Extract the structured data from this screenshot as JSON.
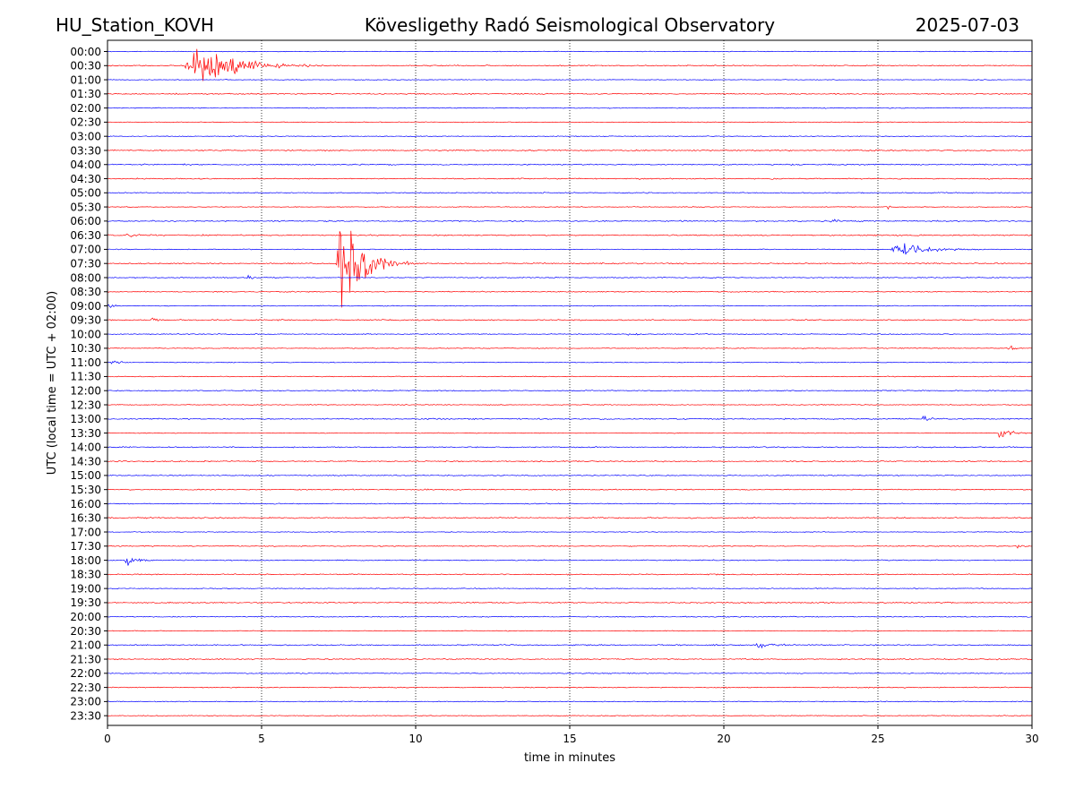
{
  "header": {
    "station": "HU_Station_KOVH",
    "title": "Kövesligethy Radó Seismological Observatory",
    "date": "2025-07-03"
  },
  "chart_data": {
    "type": "line",
    "title": "Kövesligethy Radó Seismological Observatory",
    "xlabel": "time in minutes",
    "ylabel": "UTC (local time = UTC + 02:00)",
    "xlim": [
      0,
      30
    ],
    "x_ticks": [
      0,
      5,
      10,
      15,
      20,
      25,
      30
    ],
    "x_gridlines": [
      5,
      10,
      15,
      20,
      25
    ],
    "trace_colors": [
      "#0000ff",
      "#ff0000"
    ],
    "rows": [
      "00:00",
      "00:30",
      "01:00",
      "01:30",
      "02:00",
      "02:30",
      "03:00",
      "03:30",
      "04:00",
      "04:30",
      "05:00",
      "05:30",
      "06:00",
      "06:30",
      "07:00",
      "07:30",
      "08:00",
      "08:30",
      "09:00",
      "09:30",
      "10:00",
      "10:30",
      "11:00",
      "11:30",
      "12:00",
      "12:30",
      "13:00",
      "13:30",
      "14:00",
      "14:30",
      "15:00",
      "15:30",
      "16:00",
      "16:30",
      "17:00",
      "17:30",
      "18:00",
      "18:30",
      "19:00",
      "19:30",
      "20:00",
      "20:30",
      "21:00",
      "21:30",
      "22:00",
      "22:30",
      "23:00",
      "23:30"
    ],
    "events": [
      {
        "row": "00:30",
        "start_min": 2.5,
        "duration_min": 4.5,
        "peak": 2.0
      },
      {
        "row": "07:30",
        "start_min": 7.4,
        "duration_min": 2.6,
        "peak": 5.0
      },
      {
        "row": "07:00",
        "start_min": 25.4,
        "duration_min": 3.2,
        "peak": 0.75
      },
      {
        "row": "13:30",
        "start_min": 28.9,
        "duration_min": 1.1,
        "peak": 0.6
      },
      {
        "row": "18:00",
        "start_min": 0.55,
        "duration_min": 1.0,
        "peak": 0.55
      },
      {
        "row": "13:00",
        "start_min": 26.4,
        "duration_min": 0.8,
        "peak": 0.3
      },
      {
        "row": "21:00",
        "start_min": 21.0,
        "duration_min": 1.3,
        "peak": 0.45
      },
      {
        "row": "05:30",
        "start_min": 25.3,
        "duration_min": 0.4,
        "peak": 0.35
      },
      {
        "row": "06:30",
        "start_min": 0.5,
        "duration_min": 1.0,
        "peak": 0.25
      },
      {
        "row": "08:00",
        "start_min": 4.5,
        "duration_min": 0.6,
        "peak": 0.25
      },
      {
        "row": "09:00",
        "start_min": 0.0,
        "duration_min": 0.6,
        "peak": 0.25
      },
      {
        "row": "11:00",
        "start_min": 0.1,
        "duration_min": 0.7,
        "peak": 0.3
      },
      {
        "row": "10:00",
        "start_min": 16.8,
        "duration_min": 1.2,
        "peak": 0.2
      },
      {
        "row": "10:30",
        "start_min": 29.2,
        "duration_min": 0.6,
        "peak": 0.25
      },
      {
        "row": "17:30",
        "start_min": 29.5,
        "duration_min": 0.5,
        "peak": 0.25
      },
      {
        "row": "06:00",
        "start_min": 23.4,
        "duration_min": 1.2,
        "peak": 0.2
      },
      {
        "row": "09:30",
        "start_min": 1.4,
        "duration_min": 0.5,
        "peak": 0.25
      }
    ]
  }
}
